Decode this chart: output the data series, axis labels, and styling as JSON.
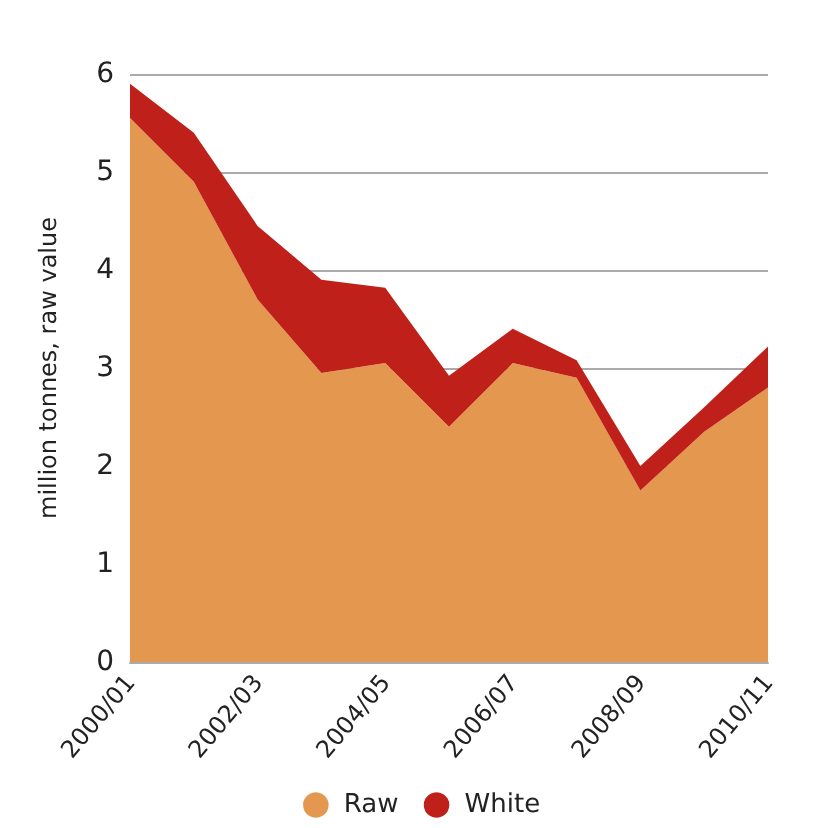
{
  "chart_data": {
    "type": "area",
    "stacked": true,
    "ylabel": "million tonnes, raw value",
    "categories": [
      "2000/01",
      null,
      "2002/03",
      null,
      "2004/05",
      null,
      "2006/07",
      null,
      "2008/09",
      null,
      "2010/11"
    ],
    "series": [
      {
        "name": "Raw",
        "color": "#e3974f",
        "values": [
          5.55,
          4.9,
          3.7,
          2.95,
          3.05,
          2.4,
          3.05,
          2.9,
          1.75,
          2.35,
          2.8
        ]
      },
      {
        "name": "White",
        "color": "#c0201a",
        "values": [
          0.35,
          0.5,
          0.75,
          0.95,
          0.77,
          0.52,
          0.35,
          0.18,
          0.25,
          0.25,
          0.42
        ]
      }
    ],
    "ylim": [
      0,
      6
    ],
    "yticks": [
      0,
      1,
      2,
      3,
      4,
      5,
      6
    ],
    "grid": "y",
    "legend": "bottom"
  }
}
